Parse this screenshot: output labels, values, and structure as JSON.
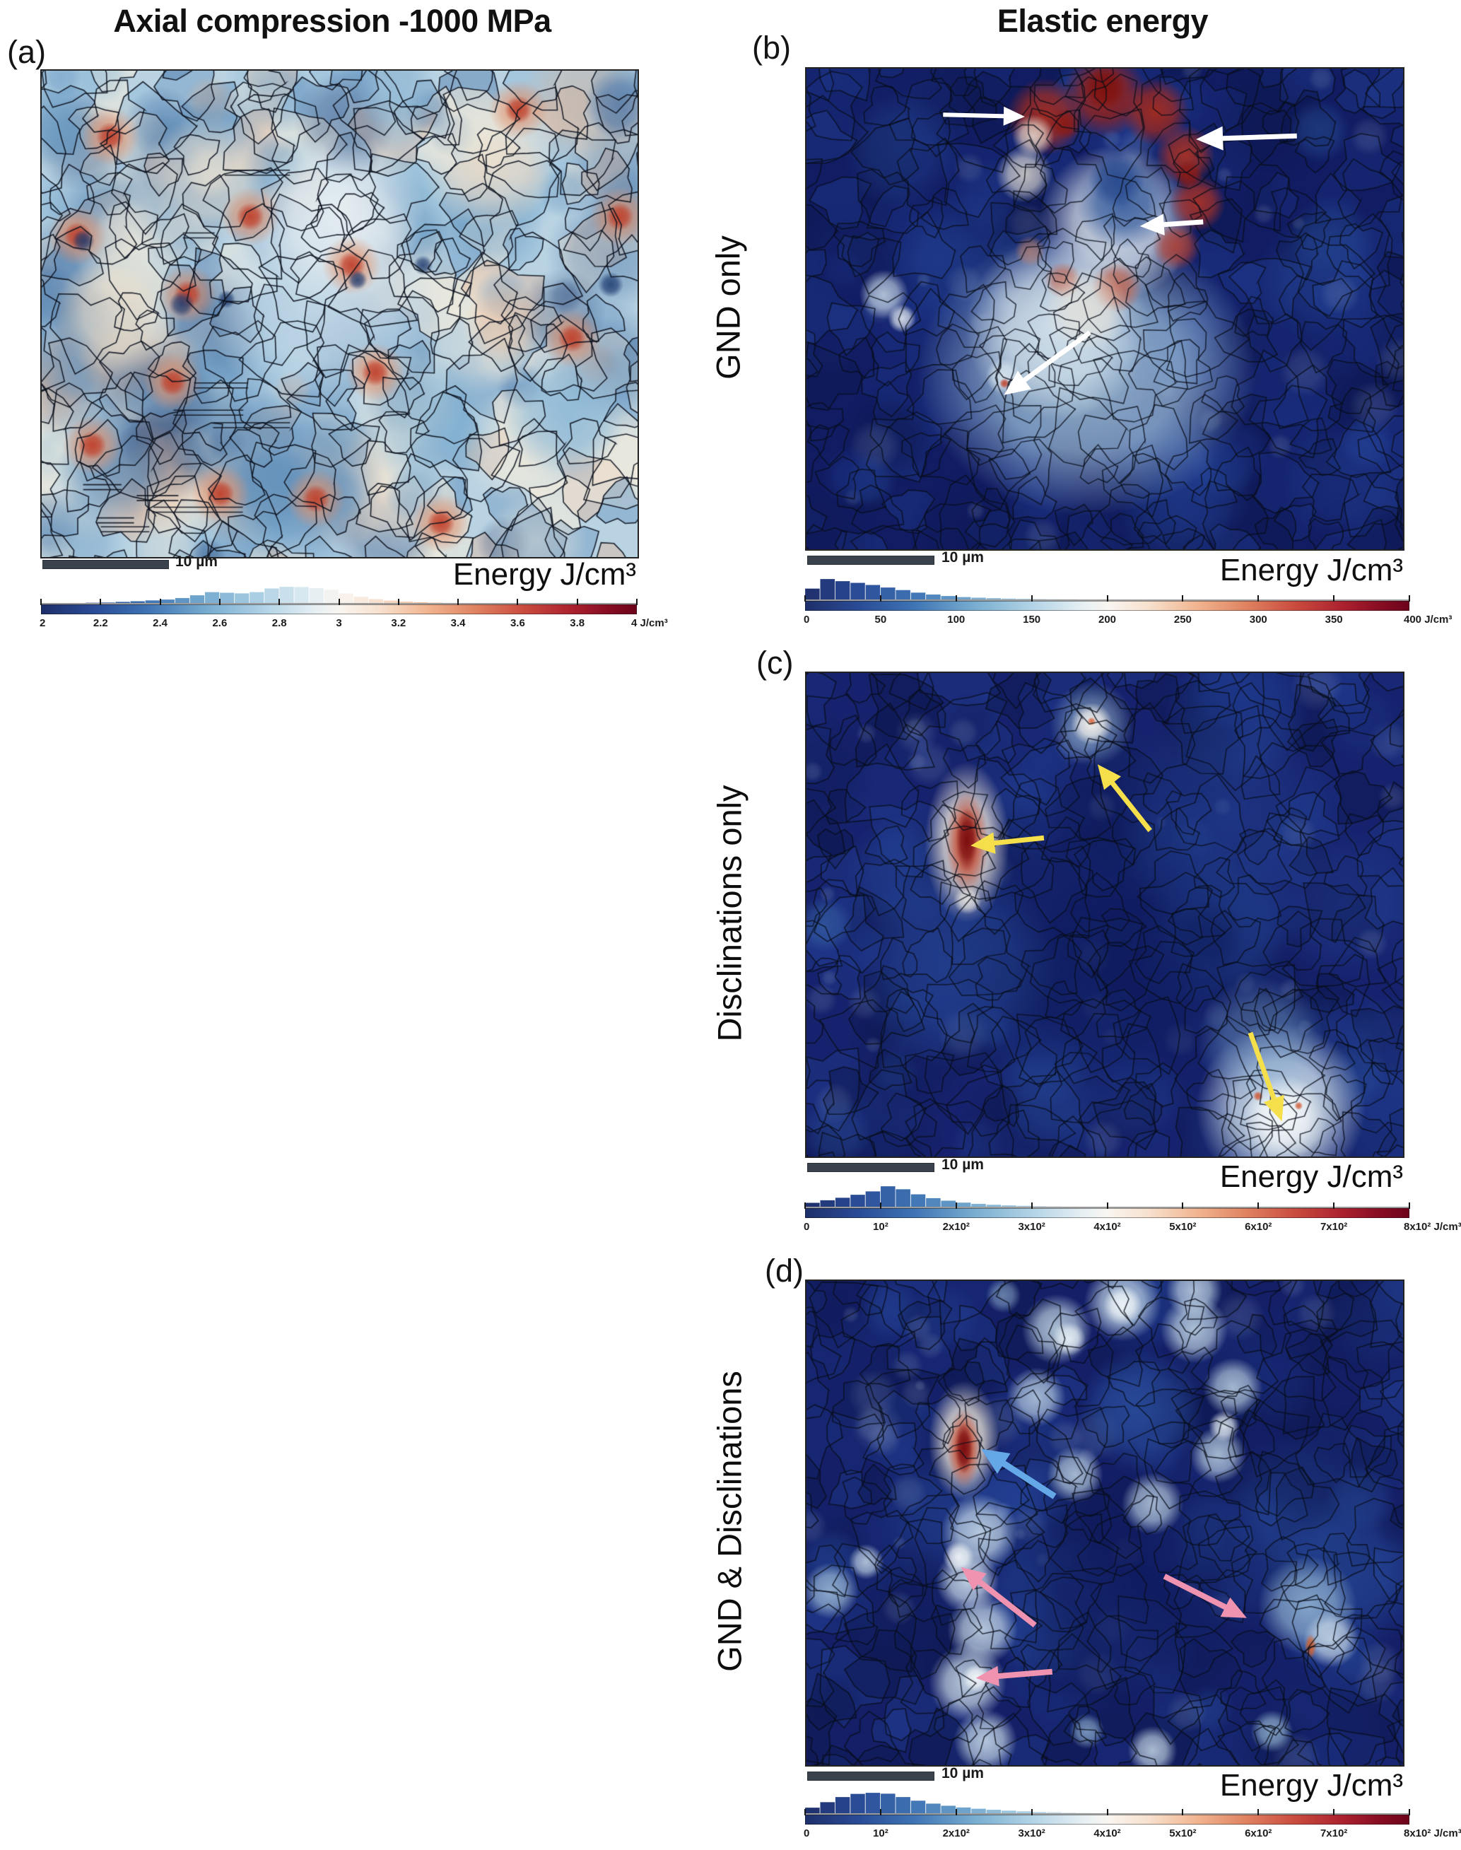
{
  "titles": {
    "left": "Axial compression -1000 MPa",
    "right": "Elastic energy"
  },
  "panels": [
    {
      "id": "a",
      "label": "(a)",
      "side_label": "",
      "scalebar_label": "10 µm",
      "energy_label": "Energy J/cm³",
      "annotations": {
        "arrows": []
      }
    },
    {
      "id": "b",
      "label": "(b)",
      "side_label": "GND only",
      "scalebar_label": "10 µm",
      "energy_label": "Energy J/cm³",
      "annotations": {
        "arrows": [
          {
            "color": "#ffffff",
            "tail": [
              0.229,
              0.096
            ],
            "head": [
              0.366,
              0.1
            ],
            "width": 6,
            "head_len": 30
          },
          {
            "color": "#ffffff",
            "tail": [
              0.822,
              0.14
            ],
            "head": [
              0.653,
              0.147
            ],
            "width": 7,
            "head_len": 38
          },
          {
            "color": "#ffffff",
            "tail": [
              0.665,
              0.319
            ],
            "head": [
              0.559,
              0.328
            ],
            "width": 7,
            "head_len": 34
          },
          {
            "color": "#ffffff",
            "tail": [
              0.475,
              0.549
            ],
            "head": [
              0.331,
              0.679
            ],
            "width": 7,
            "head_len": 36
          }
        ]
      }
    },
    {
      "id": "c",
      "label": "(c)",
      "side_label": "Disclinations only",
      "scalebar_label": "10 µm",
      "energy_label": "Energy J/cm³",
      "annotations": {
        "arrows": [
          {
            "color": "#f5e04b",
            "tail": [
              0.398,
              0.341
            ],
            "head": [
              0.275,
              0.357
            ],
            "width": 7,
            "head_len": 34
          },
          {
            "color": "#f5e04b",
            "tail": [
              0.576,
              0.326
            ],
            "head": [
              0.488,
              0.189
            ],
            "width": 7,
            "head_len": 34
          },
          {
            "color": "#f5e04b",
            "tail": [
              0.744,
              0.744
            ],
            "head": [
              0.797,
              0.927
            ],
            "width": 7,
            "head_len": 34
          }
        ]
      }
    },
    {
      "id": "d",
      "label": "(d)",
      "side_label": "GND & Disclinations",
      "scalebar_label": "10 µm",
      "energy_label": "Energy J/cm³",
      "annotations": {
        "arrows": [
          {
            "color": "#64a8e8",
            "tail": [
              0.416,
              0.445
            ],
            "head": [
              0.293,
              0.347
            ],
            "width": 9,
            "head_len": 38
          },
          {
            "color": "#f093b0",
            "tail": [
              0.383,
              0.711
            ],
            "head": [
              0.259,
              0.591
            ],
            "width": 8,
            "head_len": 34
          },
          {
            "color": "#f093b0",
            "tail": [
              0.412,
              0.807
            ],
            "head": [
              0.284,
              0.82
            ],
            "width": 8,
            "head_len": 32
          },
          {
            "color": "#f093b0",
            "tail": [
              0.6,
              0.61
            ],
            "head": [
              0.738,
              0.696
            ],
            "width": 8,
            "head_len": 34
          }
        ]
      }
    }
  ],
  "colormap_stops": [
    [
      0.0,
      "#1e2f6a"
    ],
    [
      0.09,
      "#2a4c96"
    ],
    [
      0.18,
      "#3e74b4"
    ],
    [
      0.28,
      "#78add0"
    ],
    [
      0.38,
      "#b5d5e7"
    ],
    [
      0.46,
      "#e6eff3"
    ],
    [
      0.5,
      "#f9f6f1"
    ],
    [
      0.57,
      "#f7e0cd"
    ],
    [
      0.65,
      "#f1b48f"
    ],
    [
      0.73,
      "#df8260"
    ],
    [
      0.81,
      "#ca4c3f"
    ],
    [
      0.89,
      "#ab212e"
    ],
    [
      0.95,
      "#880d23"
    ],
    [
      1.0,
      "#6c031b"
    ]
  ],
  "chart_data": [
    {
      "type": "bar",
      "panel": "a",
      "title": "Energy histogram over colorbar, axial compression -1000 MPa",
      "xlabel": "Energy J/cm³",
      "xlim": [
        2,
        4
      ],
      "x_ticks": [
        "2",
        "2.2",
        "2.4",
        "2.6",
        "2.8",
        "3",
        "3.2",
        "3.4",
        "3.6",
        "3.8",
        "4 J/cm³"
      ],
      "bin_start": 2.05,
      "bin_width": 0.05,
      "values": [
        0.02,
        0.03,
        0.05,
        0.06,
        0.09,
        0.12,
        0.16,
        0.2,
        0.27,
        0.4,
        0.55,
        0.52,
        0.49,
        0.55,
        0.72,
        0.8,
        0.79,
        0.74,
        0.66,
        0.49,
        0.33,
        0.22,
        0.15,
        0.1,
        0.07,
        0.05,
        0.04,
        0.03,
        0.02,
        0.02
      ]
    },
    {
      "type": "bar",
      "panel": "b",
      "title": "Elastic energy histogram, GND only",
      "xlabel": "Energy J/cm³",
      "xlim": [
        0,
        400
      ],
      "x_ticks": [
        "0",
        "50",
        "100",
        "150",
        "200",
        "250",
        "300",
        "350",
        "400 J/cm³"
      ],
      "bin_start": 0,
      "bin_width": 10,
      "values": [
        0.55,
        1.0,
        0.9,
        0.82,
        0.72,
        0.6,
        0.48,
        0.36,
        0.27,
        0.2,
        0.15,
        0.12,
        0.1,
        0.08,
        0.07,
        0.06,
        0.05,
        0.05,
        0.04,
        0.04,
        0.03,
        0.03,
        0.03,
        0.02,
        0.02,
        0.02,
        0.02,
        0.01,
        0.01,
        0.01,
        0.01,
        0.01,
        0.01,
        0.01,
        0.01,
        0.01,
        0.01,
        0.01,
        0.01,
        0.01
      ]
    },
    {
      "type": "bar",
      "panel": "c",
      "title": "Elastic energy histogram, disclinations only",
      "xlabel": "Energy J/cm³",
      "xlim": [
        0,
        800
      ],
      "x_ticks": [
        "0",
        "10²",
        "2x10²",
        "3x10²",
        "4x10²",
        "5x10²",
        "6x10²",
        "7x10²",
        "8x10² J/cm³"
      ],
      "bin_start": 0,
      "bin_width": 20,
      "values": [
        0.22,
        0.34,
        0.46,
        0.6,
        0.76,
        1.0,
        0.86,
        0.62,
        0.44,
        0.32,
        0.23,
        0.17,
        0.13,
        0.1,
        0.08,
        0.06,
        0.05,
        0.04,
        0.03,
        0.03,
        0.02,
        0.02,
        0.02,
        0.01,
        0.01,
        0.01,
        0.01,
        0.01,
        0.01,
        0.01,
        0.01,
        0.0,
        0.0,
        0.0,
        0.0,
        0.0,
        0.0,
        0.0,
        0.0,
        0.0
      ]
    },
    {
      "type": "bar",
      "panel": "d",
      "title": "Elastic energy histogram, GND & disclinations",
      "xlabel": "Energy J/cm³",
      "xlim": [
        0,
        800
      ],
      "x_ticks": [
        "0",
        "10²",
        "2x10²",
        "3x10²",
        "4x10²",
        "5x10²",
        "6x10²",
        "7x10²",
        "8x10² J/cm³"
      ],
      "bin_start": 0,
      "bin_width": 20,
      "values": [
        0.3,
        0.56,
        0.8,
        0.95,
        1.0,
        0.96,
        0.8,
        0.63,
        0.49,
        0.39,
        0.31,
        0.25,
        0.2,
        0.16,
        0.13,
        0.1,
        0.09,
        0.07,
        0.06,
        0.05,
        0.04,
        0.04,
        0.03,
        0.03,
        0.02,
        0.02,
        0.02,
        0.01,
        0.01,
        0.01,
        0.01,
        0.01,
        0.01,
        0.01,
        0.0,
        0.0,
        0.0,
        0.0,
        0.0,
        0.0
      ]
    }
  ]
}
